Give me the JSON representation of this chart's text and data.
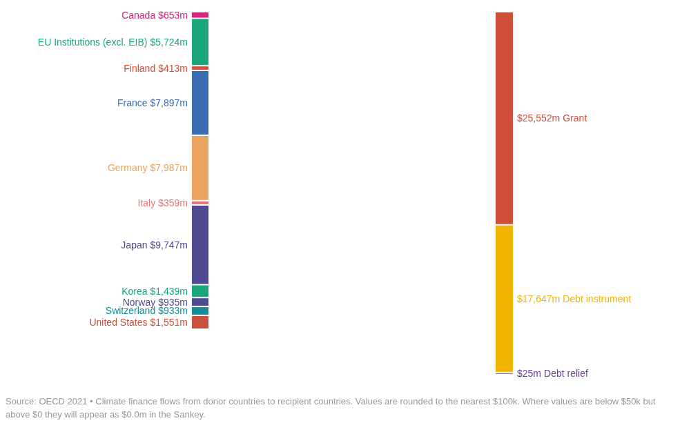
{
  "chart_data": {
    "type": "other",
    "categories": [
      "Canada",
      "EU Institutions (excl. EIB)",
      "Finland",
      "France",
      "Germany",
      "Italy",
      "Japan",
      "Korea",
      "Norway",
      "Switzerland",
      "United States",
      "Grant",
      "Debt instrument",
      "Debt relief"
    ],
    "colors": [
      "#d6247f",
      "#1aa57a",
      "#d24e38",
      "#3b6db0",
      "#e8a460",
      "#e8777a",
      "#4d4a8f",
      "#1aa57a",
      "#4d4a8f",
      "#0f8e97",
      "#c9503c",
      "#cf4e3a",
      "#f0b400",
      "#6a3d9a"
    ],
    "series": [
      {
        "values": [
          653,
          5724,
          413,
          7897,
          7987,
          359,
          9747,
          1439,
          935,
          933,
          1551,
          null,
          null,
          null
        ],
        "value_labels": [
          "$653m",
          "$5,724m",
          "$413m",
          "$7,897m",
          "$7,987m",
          "$359m",
          "$9,747m",
          "$1,439m",
          "$935m",
          "$933m",
          "$1,551m",
          null,
          null,
          null
        ]
      },
      {
        "values": [
          null,
          null,
          null,
          null,
          null,
          null,
          null,
          null,
          null,
          null,
          null,
          25552,
          17647,
          25
        ],
        "value_labels": [
          null,
          null,
          null,
          null,
          null,
          null,
          null,
          null,
          null,
          null,
          null,
          "$25,552m",
          "$17,647m",
          "$25m"
        ]
      }
    ],
    "annotations": [
      "Source: OECD 2021 • Climate finance flows from donor countries to recipient countries. Values are rounded to the nearest $100k. Where values are below $50k but above $0 they will appear as $0.0m in the Sankey."
    ]
  }
}
